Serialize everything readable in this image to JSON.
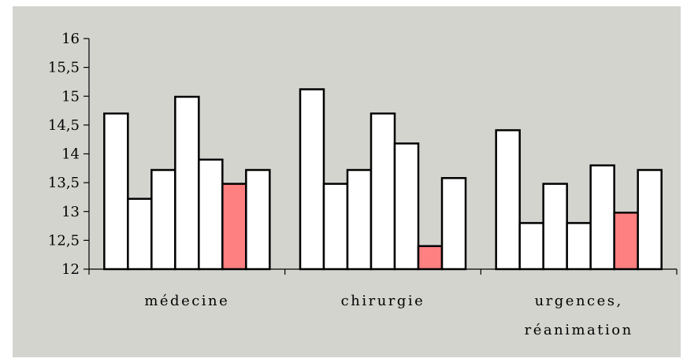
{
  "chart_data": {
    "type": "bar",
    "title": "",
    "xlabel": "",
    "ylabel": "",
    "ylim": [
      12,
      16
    ],
    "yticks": [
      12,
      12.5,
      13,
      13.5,
      14,
      14.5,
      15,
      15.5,
      16
    ],
    "ytick_labels": [
      "12",
      "12,5",
      "13",
      "13,5",
      "14",
      "14,5",
      "15",
      "15,5",
      "16"
    ],
    "grid": false,
    "legend": "none",
    "colors": {
      "default": "#ffffff",
      "highlight": "#ff8080",
      "background": "#d4d4cf",
      "outline": "#000000"
    },
    "groups": [
      {
        "label_lines": [
          "médecine"
        ],
        "bars": [
          {
            "value": 14.7,
            "highlight": false
          },
          {
            "value": 13.22,
            "highlight": false
          },
          {
            "value": 13.72,
            "highlight": false
          },
          {
            "value": 14.99,
            "highlight": false
          },
          {
            "value": 13.9,
            "highlight": false
          },
          {
            "value": 13.48,
            "highlight": true
          },
          {
            "value": 13.72,
            "highlight": false
          }
        ]
      },
      {
        "label_lines": [
          "chirurgie"
        ],
        "bars": [
          {
            "value": 15.12,
            "highlight": false
          },
          {
            "value": 13.48,
            "highlight": false
          },
          {
            "value": 13.72,
            "highlight": false
          },
          {
            "value": 14.7,
            "highlight": false
          },
          {
            "value": 14.18,
            "highlight": false
          },
          {
            "value": 12.4,
            "highlight": true
          },
          {
            "value": 13.58,
            "highlight": false
          }
        ]
      },
      {
        "label_lines": [
          "urgences,",
          "réanimation"
        ],
        "bars": [
          {
            "value": 14.41,
            "highlight": false
          },
          {
            "value": 12.8,
            "highlight": false
          },
          {
            "value": 13.48,
            "highlight": false
          },
          {
            "value": 12.8,
            "highlight": false
          },
          {
            "value": 13.8,
            "highlight": false
          },
          {
            "value": 12.98,
            "highlight": true
          },
          {
            "value": 13.72,
            "highlight": false
          }
        ]
      }
    ]
  }
}
